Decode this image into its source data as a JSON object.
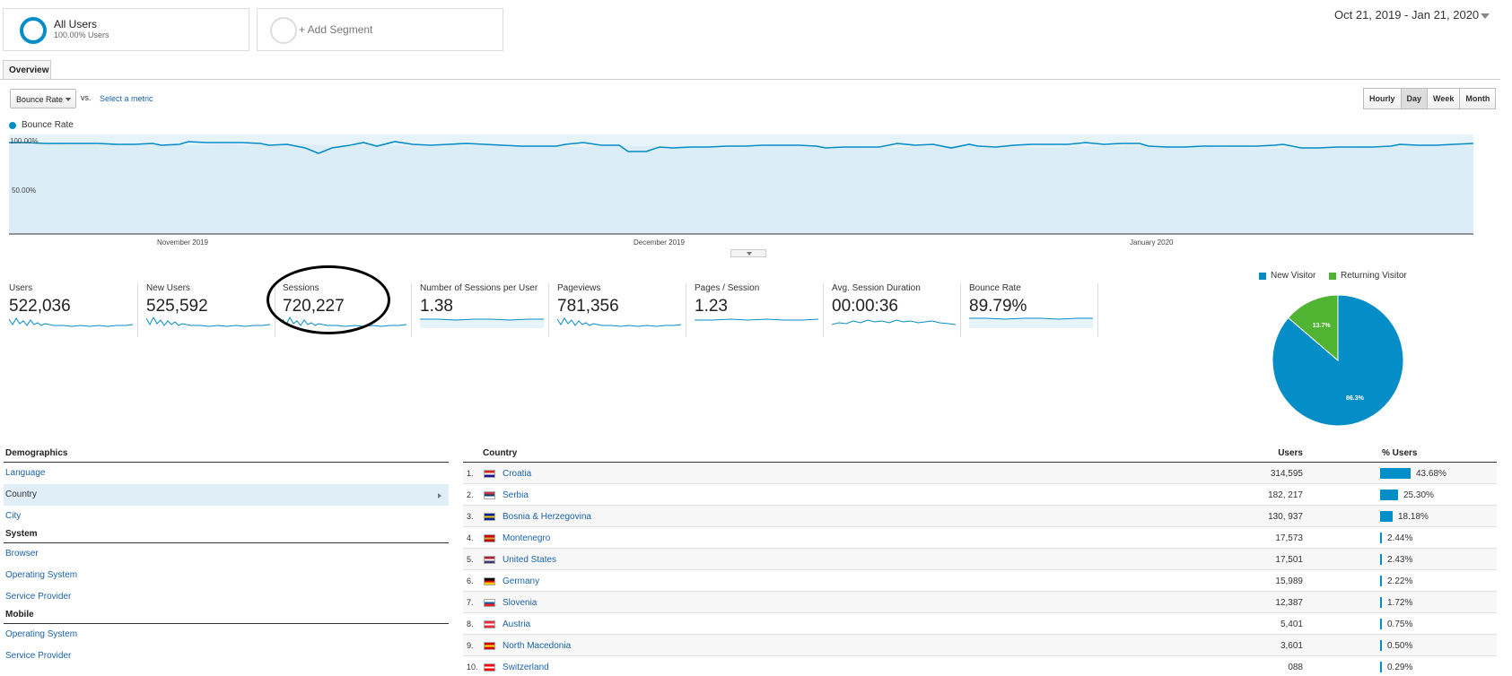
{
  "segments": {
    "all_users": {
      "title": "All Users",
      "subtitle": "100.00% Users"
    },
    "add_segment": {
      "label": "+ Add Segment"
    }
  },
  "date_range": "Oct 21, 2019 - Jan 21, 2020",
  "tabs": [
    {
      "label": "Overview"
    }
  ],
  "metric_selector": {
    "selected": "Bounce Rate",
    "vs_label": "vs.",
    "select_label": "Select a metric"
  },
  "period_buttons": [
    {
      "label": "Hourly",
      "active": false
    },
    {
      "label": "Day",
      "active": true
    },
    {
      "label": "Week",
      "active": false
    },
    {
      "label": "Month",
      "active": false
    }
  ],
  "main_chart": {
    "legend": "Bounce Rate",
    "y_ticks": [
      "100.00%",
      "50.00%"
    ],
    "x_ticks": [
      "November 2019",
      "December 2019",
      "January 2020"
    ],
    "color": "#058dc7"
  },
  "metrics": [
    {
      "label": "Users",
      "value": "522,036"
    },
    {
      "label": "New Users",
      "value": "525,592"
    },
    {
      "label": "Sessions",
      "value": "720,227"
    },
    {
      "label": "Number of Sessions per User",
      "value": "1.38"
    },
    {
      "label": "Pageviews",
      "value": "781,356"
    },
    {
      "label": "Pages / Session",
      "value": "1.23"
    },
    {
      "label": "Avg. Session Duration",
      "value": "00:00:36"
    },
    {
      "label": "Bounce Rate",
      "value": "89.79%"
    }
  ],
  "pie": {
    "legend": [
      {
        "label": "New Visitor",
        "color": "#058dc7"
      },
      {
        "label": "Returning Visitor",
        "color": "#50b432"
      }
    ],
    "chart_data": {
      "type": "pie",
      "labels": [
        "New Visitor",
        "Returning Visitor"
      ],
      "values": [
        86.3,
        13.7
      ],
      "slice_labels": [
        "86.3%",
        "13.7%"
      ]
    }
  },
  "left_panel": {
    "sections": [
      {
        "title": "Demographics",
        "items": [
          {
            "label": "Language",
            "selected": false
          },
          {
            "label": "Country",
            "selected": true
          },
          {
            "label": "City",
            "selected": false
          }
        ]
      },
      {
        "title": "System",
        "items": [
          {
            "label": "Browser",
            "selected": false
          },
          {
            "label": "Operating System",
            "selected": false
          },
          {
            "label": "Service Provider",
            "selected": false
          }
        ]
      },
      {
        "title": "Mobile",
        "items": [
          {
            "label": "Operating System",
            "selected": false
          },
          {
            "label": "Service Provider",
            "selected": false
          }
        ]
      }
    ]
  },
  "country_table": {
    "headers": {
      "country": "Country",
      "users": "Users",
      "pct": "% Users"
    },
    "rows": [
      {
        "rank": "1.",
        "country": "Croatia",
        "users": "314,595",
        "pct": "43.68%",
        "pct_value": 43.68,
        "flag": [
          "#d52b1e",
          "#ffffff",
          "#171796"
        ]
      },
      {
        "rank": "2.",
        "country": "Serbia",
        "users": "182, 217",
        "pct": "25.30%",
        "pct_value": 25.3,
        "flag": [
          "#c6363c",
          "#0c4076",
          "#ffffff"
        ]
      },
      {
        "rank": "3.",
        "country": "Bosnia & Herzegovina",
        "users": "130, 937",
        "pct": "18.18%",
        "pct_value": 18.18,
        "flag": [
          "#002395",
          "#fecb00",
          "#002395"
        ]
      },
      {
        "rank": "4.",
        "country": "Montenegro",
        "users": "17,573",
        "pct": "2.44%",
        "pct_value": 2.44,
        "flag": [
          "#c40308",
          "#d3ae3b",
          "#c40308"
        ]
      },
      {
        "rank": "5.",
        "country": "United States",
        "users": "17,501",
        "pct": "2.43%",
        "pct_value": 2.43,
        "flag": [
          "#b22234",
          "#ffffff",
          "#3c3b6e"
        ]
      },
      {
        "rank": "6.",
        "country": "Germany",
        "users": "15,989",
        "pct": "2.22%",
        "pct_value": 2.22,
        "flag": [
          "#000000",
          "#dd0000",
          "#ffce00"
        ]
      },
      {
        "rank": "7.",
        "country": "Slovenia",
        "users": "12,387",
        "pct": "1.72%",
        "pct_value": 1.72,
        "flag": [
          "#ffffff",
          "#005da4",
          "#ed1c24"
        ]
      },
      {
        "rank": "8.",
        "country": "Austria",
        "users": "5,401",
        "pct": "0.75%",
        "pct_value": 0.75,
        "flag": [
          "#ed2939",
          "#ffffff",
          "#ed2939"
        ]
      },
      {
        "rank": "9.",
        "country": "North Macedonia",
        "users": "3,601",
        "pct": "0.50%",
        "pct_value": 0.5,
        "flag": [
          "#d20000",
          "#ffe600",
          "#d20000"
        ]
      },
      {
        "rank": "10.",
        "country": "Switzerland",
        "users": "088",
        "pct": "0.29%",
        "pct_value": 0.29,
        "flag": [
          "#ff0000",
          "#ffffff",
          "#ff0000"
        ]
      }
    ]
  }
}
